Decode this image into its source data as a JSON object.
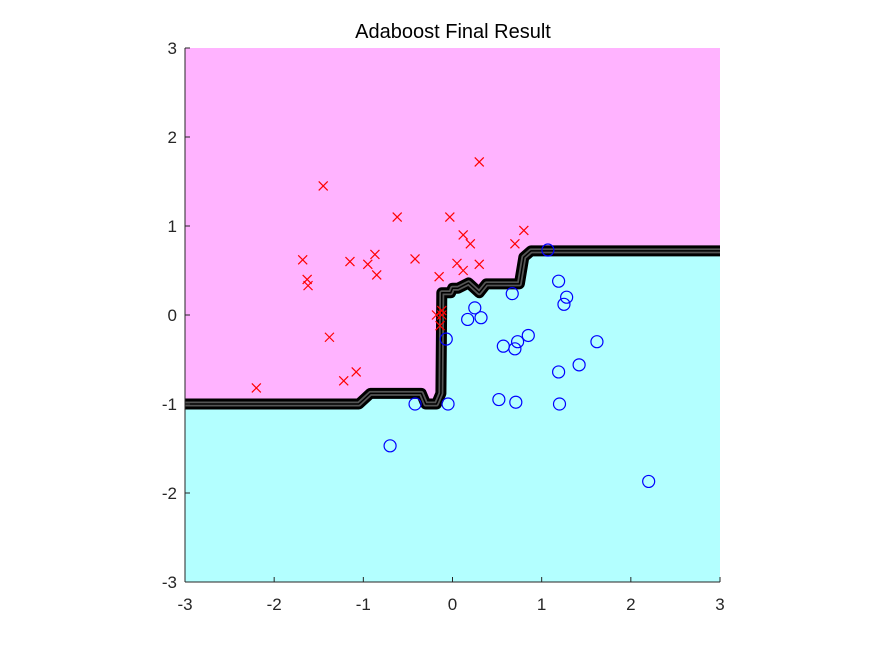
{
  "chart_data": {
    "type": "scatter",
    "title": "Adaboost Final Result",
    "xlabel": "",
    "ylabel": "",
    "xlim": [
      -3,
      3
    ],
    "ylim": [
      -3,
      3
    ],
    "x_ticks": [
      -3,
      -2,
      -1,
      0,
      1,
      2,
      3
    ],
    "y_ticks": [
      -3,
      -2,
      -1,
      0,
      1,
      2,
      3
    ],
    "x_tick_labels": [
      "-3",
      "-2",
      "-1",
      "0",
      "1",
      "2",
      "3"
    ],
    "y_tick_labels": [
      "-3",
      "-2",
      "-1",
      "0",
      "1",
      "2",
      "3"
    ],
    "grid": false,
    "legend": "none",
    "colors": {
      "region_upper": "#FFB3FF",
      "region_lower": "#B3FFFF",
      "boundary": "#000000",
      "class_x": "#FF0000",
      "class_o": "#0000FF"
    },
    "decision_boundary": [
      [
        -3.0,
        -1.0
      ],
      [
        -1.05,
        -1.0
      ],
      [
        -0.92,
        -0.88
      ],
      [
        -0.35,
        -0.88
      ],
      [
        -0.3,
        -1.0
      ],
      [
        -0.18,
        -1.0
      ],
      [
        -0.13,
        -0.88
      ],
      [
        -0.12,
        0.25
      ],
      [
        -0.02,
        0.25
      ],
      [
        0.0,
        0.3
      ],
      [
        0.06,
        0.3
      ],
      [
        0.18,
        0.36
      ],
      [
        0.3,
        0.25
      ],
      [
        0.38,
        0.35
      ],
      [
        0.75,
        0.35
      ],
      [
        0.8,
        0.65
      ],
      [
        0.88,
        0.72
      ],
      [
        3.0,
        0.72
      ]
    ],
    "series": [
      {
        "marker": "x",
        "x": [
          -2.2,
          -1.68,
          -1.63,
          -1.62,
          -1.45,
          -1.38,
          -1.22,
          -1.15,
          -1.08,
          -0.95,
          -0.87,
          -0.85,
          -0.62,
          -0.42,
          -0.18,
          -0.15,
          -0.12,
          -0.14,
          -0.12,
          -0.03,
          0.05,
          0.12,
          0.12,
          0.2,
          0.3,
          0.3,
          0.7,
          0.8
        ],
        "y": [
          -0.82,
          0.62,
          0.4,
          0.33,
          1.45,
          -0.25,
          -0.74,
          0.6,
          -0.64,
          0.57,
          0.68,
          0.45,
          1.1,
          0.63,
          0.0,
          0.43,
          0.05,
          -0.12,
          0.0,
          1.1,
          0.58,
          0.9,
          0.5,
          0.8,
          0.57,
          1.72,
          0.8,
          0.95
        ]
      },
      {
        "marker": "o",
        "x": [
          -0.7,
          -0.42,
          -0.05,
          -0.07,
          0.17,
          0.25,
          0.32,
          0.52,
          0.57,
          0.67,
          0.7,
          0.71,
          0.73,
          0.85,
          1.07,
          1.19,
          1.19,
          1.2,
          1.25,
          1.28,
          1.42,
          1.62,
          2.2
        ],
        "y": [
          -1.47,
          -1.0,
          -1.0,
          -0.27,
          -0.05,
          0.08,
          -0.03,
          -0.95,
          -0.35,
          0.24,
          -0.38,
          -0.98,
          -0.3,
          -0.23,
          0.73,
          0.38,
          -0.64,
          -1.0,
          0.12,
          0.2,
          -0.56,
          -0.3,
          -1.87
        ]
      }
    ]
  }
}
